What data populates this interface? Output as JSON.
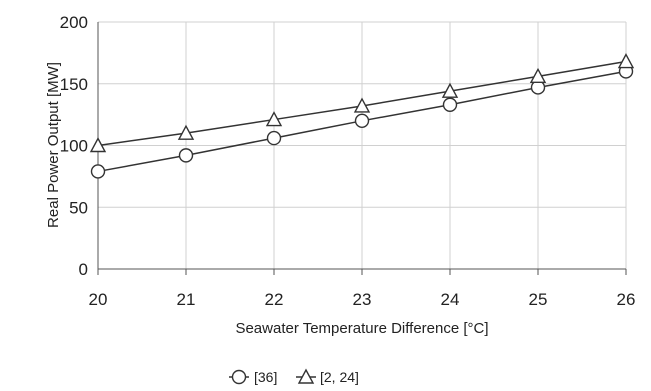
{
  "chart_data": {
    "type": "line",
    "xlabel": "Seawater Temperature Difference [°C]",
    "ylabel": "Real Power Output [MW]",
    "x": [
      20,
      21,
      22,
      23,
      24,
      25,
      26
    ],
    "xlim": [
      20,
      26
    ],
    "ylim": [
      0,
      200
    ],
    "x_ticks": [
      "20",
      "21",
      "22",
      "23",
      "24",
      "25",
      "26"
    ],
    "y_ticks": [
      "0",
      "50",
      "100",
      "150",
      "200"
    ],
    "grid": true,
    "legend_position": "bottom",
    "series": [
      {
        "name": "[36]",
        "marker": "circle",
        "values": [
          79,
          92,
          106,
          120,
          133,
          147,
          160
        ]
      },
      {
        "name": "[2, 24]",
        "marker": "triangle",
        "values": [
          100,
          110,
          121,
          132,
          144,
          156,
          168
        ]
      }
    ],
    "line_color": "#333333",
    "grid_color": "#d0d0d0"
  }
}
